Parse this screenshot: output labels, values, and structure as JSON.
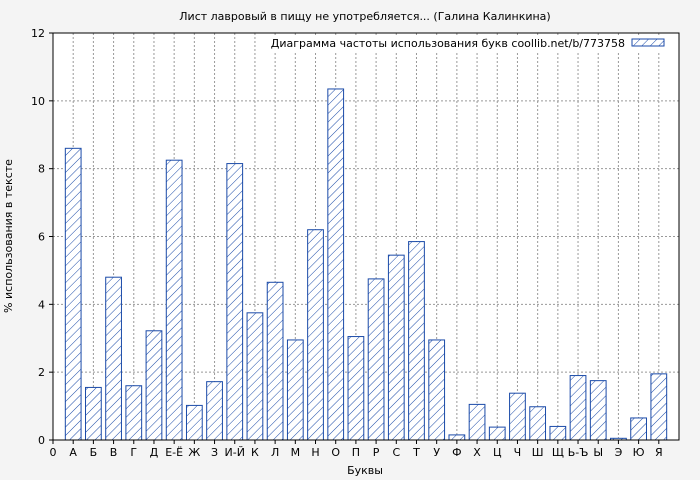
{
  "chart_data": {
    "type": "bar",
    "title": "Лист лавровый в пищу не употребляется... (Галина Калинкина)",
    "xlabel": "Буквы",
    "ylabel": "% использования в тексте",
    "legend": "Диаграмма частоты использования букв coollib.net/b/773758",
    "legend_position": "top-right",
    "grid": true,
    "ylim": [
      0,
      12
    ],
    "yticks": [
      "0",
      "2",
      "4",
      "6",
      "8",
      "10",
      "12"
    ],
    "categories": [
      "0",
      "А",
      "Б",
      "В",
      "Г",
      "Д",
      "Е-Ё",
      "Ж",
      "З",
      "И-Й",
      "К",
      "Л",
      "М",
      "Н",
      "О",
      "П",
      "Р",
      "С",
      "Т",
      "У",
      "Ф",
      "Х",
      "Ц",
      "Ч",
      "Ш",
      "Щ",
      "Ь-Ъ",
      "Ы",
      "Э",
      "Ю",
      "Я"
    ],
    "values": [
      null,
      8.6,
      1.55,
      4.8,
      1.6,
      3.22,
      8.25,
      1.02,
      1.72,
      8.15,
      3.75,
      4.65,
      2.95,
      6.2,
      10.35,
      3.05,
      4.75,
      5.45,
      5.85,
      2.95,
      0.15,
      1.05,
      0.38,
      1.38,
      0.98,
      0.4,
      1.9,
      1.75,
      0.05,
      0.65,
      1.95
    ],
    "colors": {
      "bar_stroke": "#1a4aa8",
      "hatch": "#1a4aa8",
      "plot_bg": "#ffffff",
      "page_bg": "#f4f4f4"
    }
  }
}
